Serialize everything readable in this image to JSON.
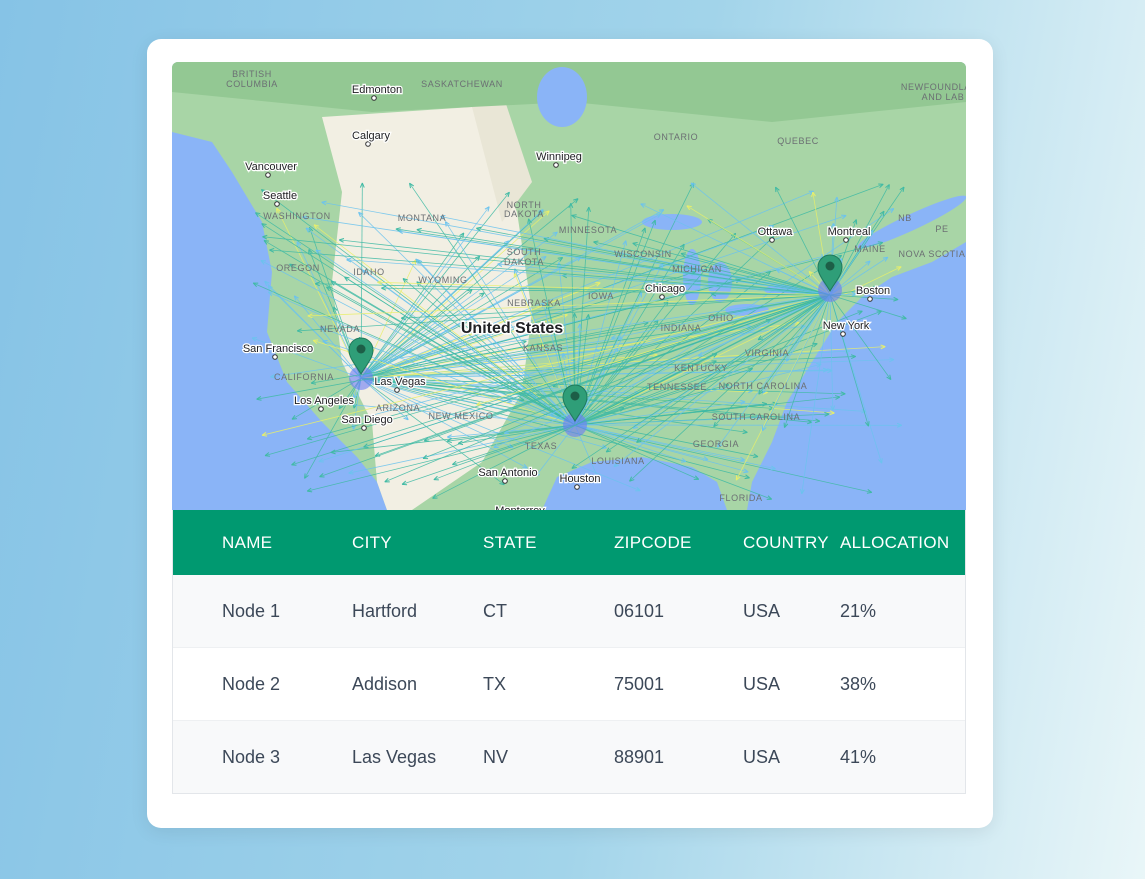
{
  "map": {
    "labels": [
      "BRITISH",
      "COLUMBIA",
      "Edmonton",
      "SASKATCHEWAN",
      "Calgary",
      "Winnipeg",
      "ONTARIO",
      "QUEBEC",
      "NEWFOUNDLAND",
      "AND LAB",
      "Vancouver",
      "Seattle",
      "WASHINGTON",
      "MONTANA",
      "NORTH",
      "DAKOTA",
      "MINNESOTA",
      "Ottawa",
      "Montreal",
      "NB",
      "PE",
      "MAINE",
      "NOVA SCOTIA",
      "OREGON",
      "IDAHO",
      "WYOMING",
      "SOUTH",
      "DAKOTA",
      "WISCONSIN",
      "MICHIGAN",
      "Chicago",
      "Boston",
      "NEBRASKA",
      "IOWA",
      "United States",
      "New York",
      "NEVADA",
      "San Francisco",
      "CALIFORNIA",
      "Las Vegas",
      "KANSAS",
      "INDIANA",
      "OHIO",
      "KENTUCKY",
      "VIRGINIA",
      "TENNESSEE",
      "NORTH CAROLINA",
      "Los Angeles",
      "ARIZONA",
      "San Diego",
      "NEW MEXICO",
      "TEXAS",
      "SOUTH CAROLINA",
      "GEORGIA",
      "San Antonio",
      "LOUISIANA",
      "Houston",
      "FLORIDA",
      "Monterrey"
    ]
  },
  "table": {
    "columns": [
      "NAME",
      "CITY",
      "STATE",
      "ZIPCODE",
      "COUNTRY",
      "ALLOCATION"
    ],
    "rows": [
      [
        "Node 1",
        "Hartford",
        "CT",
        "06101",
        "USA",
        "21%"
      ],
      [
        "Node 2",
        "Addison",
        "TX",
        "75001",
        "USA",
        "38%"
      ],
      [
        "Node 3",
        "Las Vegas",
        "NV",
        "88901",
        "USA",
        "41%"
      ]
    ]
  }
}
